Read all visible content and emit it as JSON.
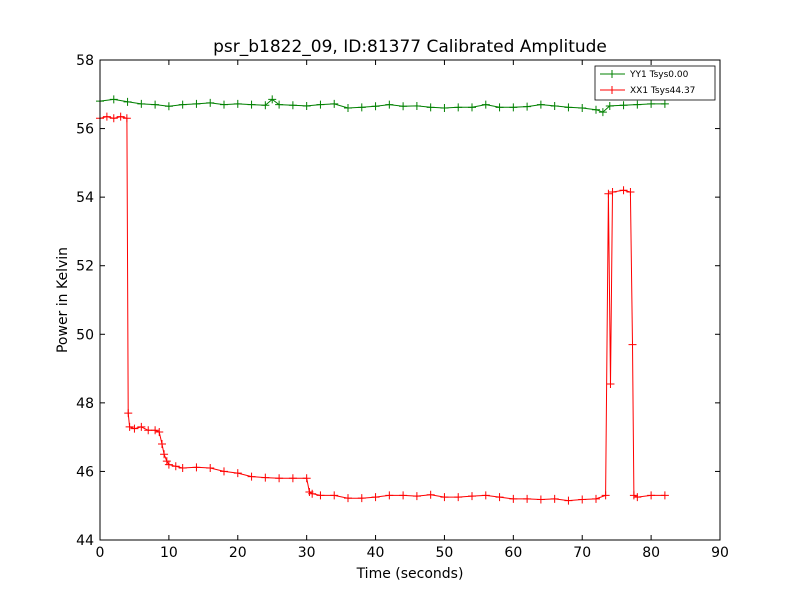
{
  "chart_data": {
    "type": "line",
    "title": "psr_b1822_09, ID:81377 Calibrated Amplitude",
    "xlabel": "Time (seconds)",
    "ylabel": "Power in Kelvin",
    "xlim": [
      0,
      90
    ],
    "ylim": [
      44,
      58
    ],
    "xticks": [
      0,
      10,
      20,
      30,
      40,
      50,
      60,
      70,
      80,
      90
    ],
    "yticks": [
      44,
      46,
      48,
      50,
      52,
      54,
      56,
      58
    ],
    "grid": false,
    "legend_position": "top-right",
    "series": [
      {
        "name": "YY1 Tsys0.00",
        "color": "#008000",
        "marker": "plus",
        "x": [
          0,
          2,
          4,
          6,
          8,
          10,
          12,
          14,
          16,
          18,
          20,
          22,
          24,
          25,
          26,
          28,
          30,
          32,
          34,
          36,
          38,
          40,
          42,
          44,
          46,
          48,
          50,
          52,
          54,
          56,
          58,
          60,
          62,
          64,
          66,
          68,
          70,
          72,
          73,
          74,
          76,
          78,
          80,
          82
        ],
        "y": [
          56.8,
          56.85,
          56.78,
          56.72,
          56.7,
          56.65,
          56.7,
          56.72,
          56.75,
          56.7,
          56.72,
          56.7,
          56.68,
          56.85,
          56.7,
          56.68,
          56.66,
          56.7,
          56.72,
          56.6,
          56.62,
          56.65,
          56.7,
          56.65,
          56.66,
          56.62,
          56.6,
          56.62,
          56.62,
          56.7,
          56.62,
          56.62,
          56.64,
          56.7,
          56.66,
          56.62,
          56.6,
          56.55,
          56.48,
          56.66,
          56.68,
          56.7,
          56.72,
          56.72
        ]
      },
      {
        "name": "XX1 Tsys44.37",
        "color": "#ff0000",
        "marker": "plus",
        "x": [
          0,
          1,
          2,
          3,
          3.9,
          4.1,
          4.3,
          5,
          6,
          7,
          8,
          8.6,
          9,
          9.3,
          9.7,
          10,
          11,
          12,
          14,
          16,
          18,
          20,
          22,
          24,
          26,
          28,
          30,
          30.4,
          30.8,
          32,
          34,
          36,
          38,
          40,
          42,
          44,
          46,
          48,
          50,
          52,
          54,
          56,
          58,
          60,
          62,
          64,
          66,
          68,
          70,
          72,
          73.4,
          73.8,
          74.1,
          74.4,
          76,
          77,
          77.3,
          77.5,
          78,
          80,
          82
        ],
        "y": [
          56.3,
          56.35,
          56.3,
          56.35,
          56.3,
          47.7,
          47.3,
          47.25,
          47.3,
          47.2,
          47.2,
          47.15,
          46.8,
          46.5,
          46.3,
          46.2,
          46.15,
          46.1,
          46.12,
          46.1,
          46.0,
          45.95,
          45.85,
          45.82,
          45.8,
          45.8,
          45.8,
          45.4,
          45.35,
          45.3,
          45.3,
          45.22,
          45.22,
          45.25,
          45.3,
          45.3,
          45.28,
          45.32,
          45.25,
          45.25,
          45.28,
          45.3,
          45.25,
          45.2,
          45.2,
          45.18,
          45.2,
          45.15,
          45.18,
          45.2,
          45.3,
          54.1,
          48.55,
          54.15,
          54.2,
          54.15,
          49.7,
          45.3,
          45.25,
          45.3,
          45.3
        ]
      }
    ]
  }
}
